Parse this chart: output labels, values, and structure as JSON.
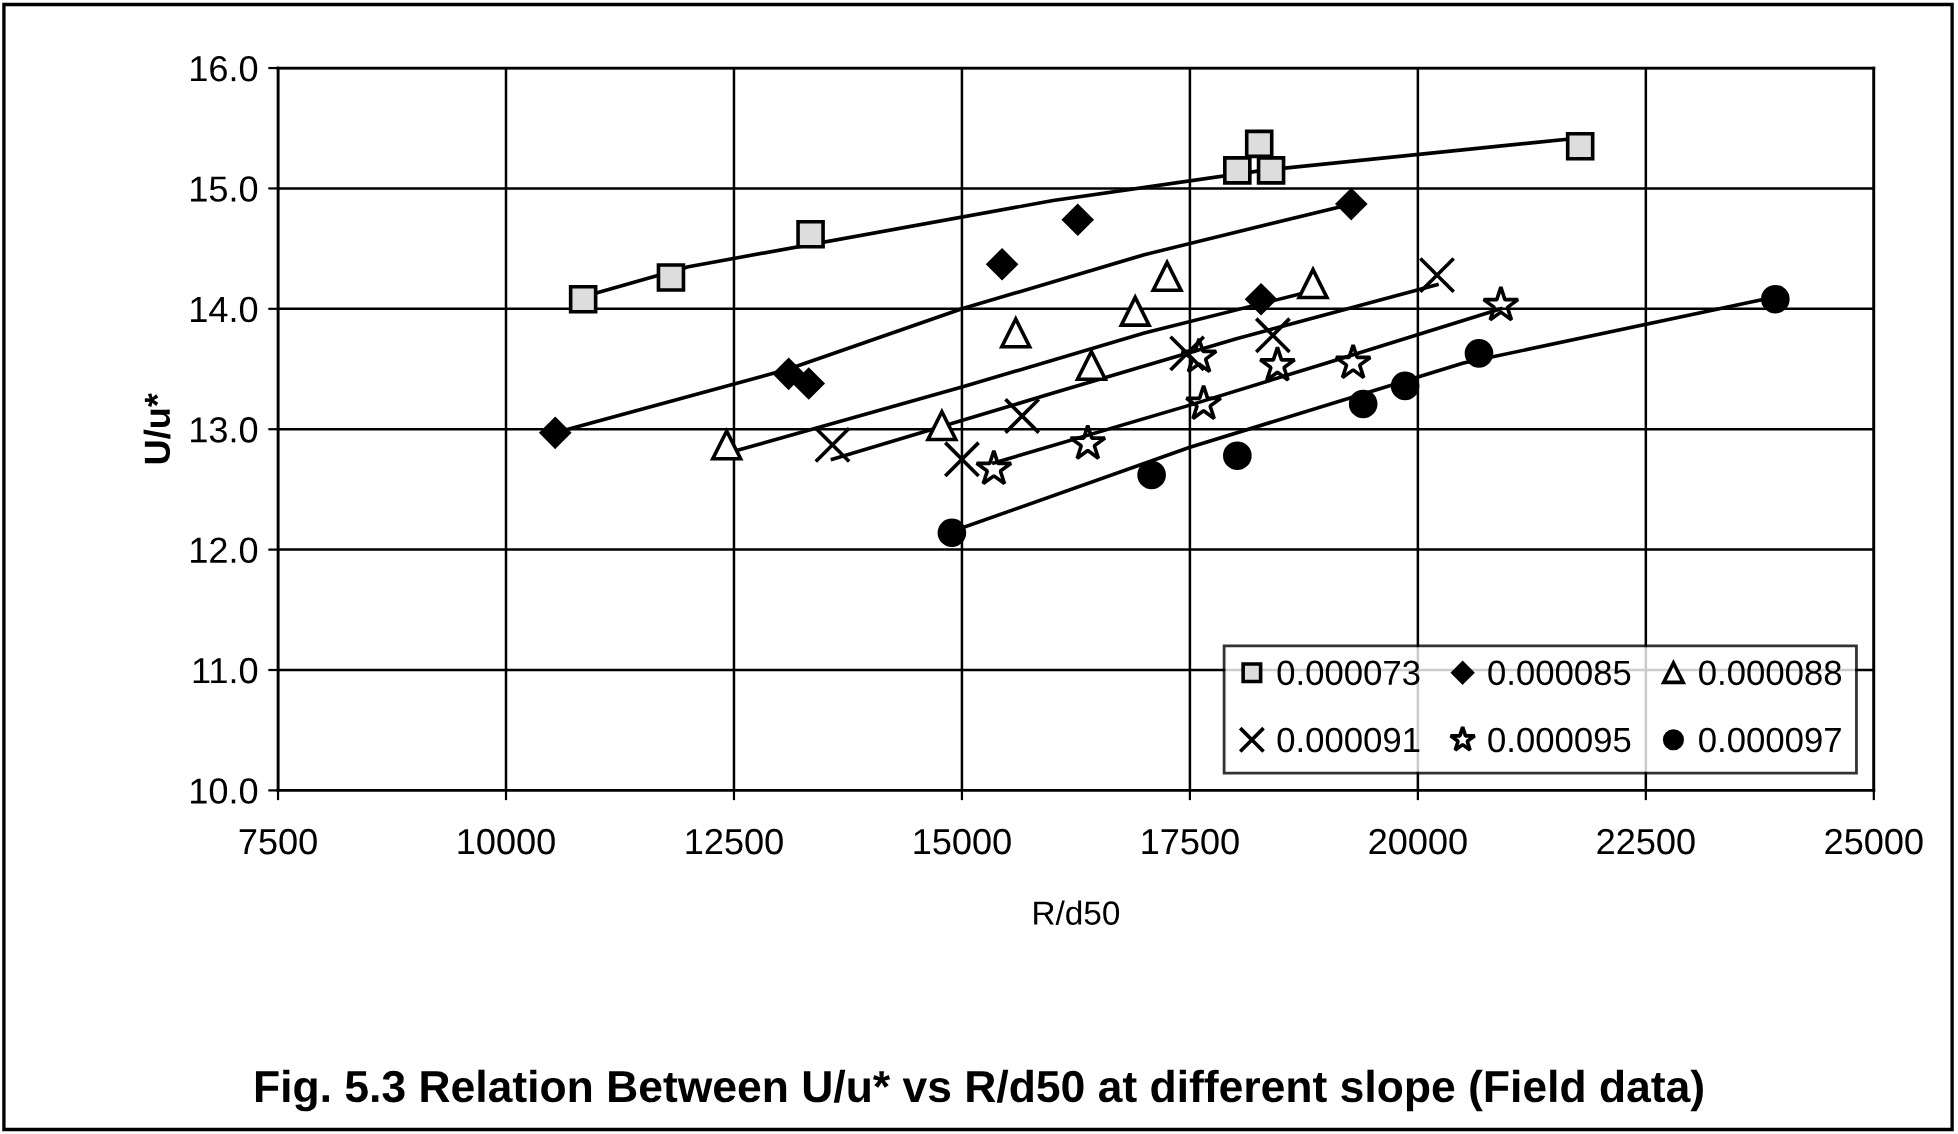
{
  "chart_data": {
    "type": "scatter",
    "title": "Fig. 5.3 Relation Between U/u* vs R/d50 at different slope (Field data)",
    "xlabel": "R/d50",
    "ylabel": "U/u*",
    "xlim": [
      7500,
      25000
    ],
    "xticks": [
      7500,
      10000,
      12500,
      15000,
      17500,
      20000,
      22500,
      25000
    ],
    "ylim": [
      10.0,
      16.0
    ],
    "yticks": [
      {
        "value": 10,
        "label": "10.0"
      },
      {
        "value": 11,
        "label": "11.0"
      },
      {
        "value": 12,
        "label": "12.0"
      },
      {
        "value": 13,
        "label": "13.0"
      },
      {
        "value": 14,
        "label": "14.0"
      },
      {
        "value": 15,
        "label": "15.0"
      },
      {
        "value": 16,
        "label": "16.0"
      }
    ],
    "grid": true,
    "legend": "bottom right",
    "series": [
      {
        "name": "0.000073",
        "color": "#000000",
        "marker": "square",
        "x": [
          10846,
          11809,
          13340,
          18020,
          18260,
          18390,
          21780
        ],
        "values": [
          14.08,
          14.26,
          14.62,
          15.15,
          15.37,
          15.15,
          15.35
        ]
      },
      {
        "name": "0.000085",
        "color": "#000000",
        "marker": "diamond",
        "x": [
          10540,
          13100,
          13320,
          15440,
          16270,
          18280,
          19270
        ],
        "values": [
          12.97,
          13.46,
          13.38,
          14.37,
          14.74,
          14.08,
          14.87
        ]
      },
      {
        "name": "0.000088",
        "color": "#000000",
        "marker": "triangle",
        "x": [
          12420,
          14780,
          15590,
          16420,
          16900,
          17250,
          18850
        ],
        "values": [
          12.87,
          13.03,
          13.8,
          13.53,
          13.98,
          14.27,
          14.21
        ]
      },
      {
        "name": "0.000091",
        "color": "#000000",
        "marker": "cross",
        "x": [
          13580,
          15000,
          15660,
          17470,
          18410,
          20210
        ],
        "values": [
          12.87,
          12.75,
          13.11,
          13.63,
          13.78,
          14.28
        ]
      },
      {
        "name": "0.000095",
        "color": "#000000",
        "marker": "star",
        "x": [
          15350,
          16380,
          17650,
          17600,
          18460,
          19290,
          20910
        ],
        "values": [
          12.67,
          12.88,
          13.21,
          13.6,
          13.53,
          13.55,
          14.03
        ]
      },
      {
        "name": "0.000097",
        "color": "#000000",
        "marker": "circle",
        "x": [
          14890,
          17080,
          18020,
          19400,
          19860,
          20670,
          23920
        ],
        "values": [
          12.14,
          12.62,
          12.78,
          13.21,
          13.36,
          13.63,
          14.08
        ]
      },
      {
        "type": "line",
        "color": "#000000",
        "marker": "none",
        "x": [
          10846,
          12000,
          16000,
          18300,
          21780
        ],
        "values": [
          14.1,
          14.35,
          14.9,
          15.15,
          15.42
        ]
      },
      {
        "type": "line",
        "color": "#000000",
        "marker": "none",
        "x": [
          10540,
          13100,
          15000,
          17000,
          19270
        ],
        "values": [
          12.97,
          13.5,
          14.0,
          14.45,
          14.87
        ]
      },
      {
        "type": "line",
        "color": "#000000",
        "marker": "none",
        "x": [
          12420,
          15000,
          17000,
          18850
        ],
        "values": [
          12.8,
          13.35,
          13.8,
          14.15
        ]
      },
      {
        "type": "line",
        "color": "#000000",
        "marker": "none",
        "x": [
          13580,
          16000,
          18000,
          20210
        ],
        "values": [
          12.75,
          13.3,
          13.75,
          14.2
        ]
      },
      {
        "type": "line",
        "color": "#000000",
        "marker": "none",
        "x": [
          15350,
          17500,
          19000,
          20910
        ],
        "values": [
          12.72,
          13.2,
          13.55,
          14.0
        ]
      },
      {
        "type": "line",
        "color": "#000000",
        "marker": "none",
        "x": [
          14890,
          17500,
          20500,
          23920
        ],
        "values": [
          12.15,
          12.85,
          13.55,
          14.1
        ]
      }
    ]
  }
}
